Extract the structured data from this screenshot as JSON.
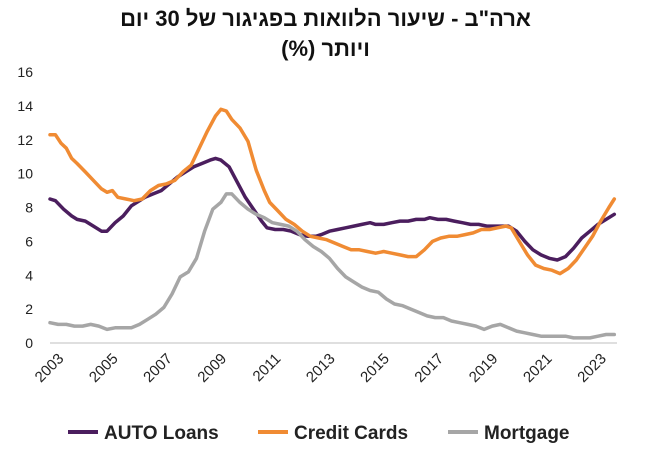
{
  "chart_data": {
    "type": "line",
    "title_line1": "ארה\"ב - שיעור הלוואות בפגיגור של 30 יום",
    "title_line2": "ויותר (%)",
    "ylim": [
      0,
      16
    ],
    "yticks": [
      0,
      2,
      4,
      6,
      8,
      10,
      12,
      14,
      16
    ],
    "xlim": [
      2003,
      2023.9
    ],
    "xticks": [
      "2003",
      "2005",
      "2007",
      "2009",
      "2011",
      "2013",
      "2015",
      "2017",
      "2019",
      "2021",
      "2023"
    ],
    "grid": false,
    "legend_position": "bottom",
    "series": [
      {
        "name": "AUTO Loans",
        "color": "#4b1e5e",
        "points": [
          [
            2003.0,
            8.5
          ],
          [
            2003.2,
            8.4
          ],
          [
            2003.5,
            7.9
          ],
          [
            2003.8,
            7.5
          ],
          [
            2004.0,
            7.3
          ],
          [
            2004.3,
            7.2
          ],
          [
            2004.6,
            6.9
          ],
          [
            2004.9,
            6.6
          ],
          [
            2005.1,
            6.6
          ],
          [
            2005.4,
            7.1
          ],
          [
            2005.7,
            7.5
          ],
          [
            2006.0,
            8.1
          ],
          [
            2006.2,
            8.3
          ],
          [
            2006.5,
            8.6
          ],
          [
            2006.8,
            8.8
          ],
          [
            2007.1,
            9.0
          ],
          [
            2007.4,
            9.4
          ],
          [
            2007.7,
            9.8
          ],
          [
            2008.0,
            10.1
          ],
          [
            2008.3,
            10.4
          ],
          [
            2008.6,
            10.6
          ],
          [
            2008.9,
            10.8
          ],
          [
            2009.1,
            10.9
          ],
          [
            2009.3,
            10.8
          ],
          [
            2009.6,
            10.4
          ],
          [
            2009.9,
            9.5
          ],
          [
            2010.2,
            8.6
          ],
          [
            2010.5,
            7.9
          ],
          [
            2010.8,
            7.2
          ],
          [
            2011.0,
            6.8
          ],
          [
            2011.3,
            6.7
          ],
          [
            2011.6,
            6.7
          ],
          [
            2011.9,
            6.6
          ],
          [
            2012.2,
            6.4
          ],
          [
            2012.5,
            6.3
          ],
          [
            2012.8,
            6.3
          ],
          [
            2013.0,
            6.4
          ],
          [
            2013.3,
            6.6
          ],
          [
            2013.6,
            6.7
          ],
          [
            2013.9,
            6.8
          ],
          [
            2014.2,
            6.9
          ],
          [
            2014.5,
            7.0
          ],
          [
            2014.8,
            7.1
          ],
          [
            2015.0,
            7.0
          ],
          [
            2015.3,
            7.0
          ],
          [
            2015.6,
            7.1
          ],
          [
            2015.9,
            7.2
          ],
          [
            2016.2,
            7.2
          ],
          [
            2016.5,
            7.3
          ],
          [
            2016.8,
            7.3
          ],
          [
            2017.0,
            7.4
          ],
          [
            2017.3,
            7.3
          ],
          [
            2017.6,
            7.3
          ],
          [
            2017.9,
            7.2
          ],
          [
            2018.2,
            7.1
          ],
          [
            2018.5,
            7.0
          ],
          [
            2018.8,
            7.0
          ],
          [
            2019.1,
            6.9
          ],
          [
            2019.4,
            6.9
          ],
          [
            2019.7,
            6.9
          ],
          [
            2019.9,
            6.9
          ],
          [
            2020.2,
            6.6
          ],
          [
            2020.5,
            6.0
          ],
          [
            2020.8,
            5.5
          ],
          [
            2021.1,
            5.2
          ],
          [
            2021.4,
            5.0
          ],
          [
            2021.7,
            4.9
          ],
          [
            2022.0,
            5.1
          ],
          [
            2022.3,
            5.6
          ],
          [
            2022.6,
            6.2
          ],
          [
            2022.9,
            6.6
          ],
          [
            2023.2,
            7.0
          ],
          [
            2023.5,
            7.3
          ],
          [
            2023.8,
            7.6
          ]
        ]
      },
      {
        "name": "Credit Cards",
        "color": "#f08b33",
        "points": [
          [
            2003.0,
            12.3
          ],
          [
            2003.2,
            12.3
          ],
          [
            2003.4,
            11.8
          ],
          [
            2003.6,
            11.5
          ],
          [
            2003.8,
            10.9
          ],
          [
            2004.0,
            10.6
          ],
          [
            2004.3,
            10.1
          ],
          [
            2004.6,
            9.6
          ],
          [
            2004.9,
            9.1
          ],
          [
            2005.1,
            8.9
          ],
          [
            2005.3,
            9.0
          ],
          [
            2005.5,
            8.6
          ],
          [
            2005.8,
            8.5
          ],
          [
            2006.1,
            8.4
          ],
          [
            2006.4,
            8.5
          ],
          [
            2006.7,
            9.0
          ],
          [
            2007.0,
            9.3
          ],
          [
            2007.3,
            9.4
          ],
          [
            2007.6,
            9.6
          ],
          [
            2007.9,
            10.1
          ],
          [
            2008.2,
            10.5
          ],
          [
            2008.5,
            11.5
          ],
          [
            2008.8,
            12.5
          ],
          [
            2009.1,
            13.4
          ],
          [
            2009.3,
            13.8
          ],
          [
            2009.5,
            13.7
          ],
          [
            2009.7,
            13.2
          ],
          [
            2010.0,
            12.7
          ],
          [
            2010.3,
            11.9
          ],
          [
            2010.6,
            10.2
          ],
          [
            2010.9,
            9.0
          ],
          [
            2011.1,
            8.3
          ],
          [
            2011.4,
            7.8
          ],
          [
            2011.7,
            7.3
          ],
          [
            2012.0,
            7.0
          ],
          [
            2012.3,
            6.6
          ],
          [
            2012.6,
            6.3
          ],
          [
            2012.9,
            6.2
          ],
          [
            2013.2,
            6.1
          ],
          [
            2013.5,
            5.9
          ],
          [
            2013.8,
            5.7
          ],
          [
            2014.1,
            5.5
          ],
          [
            2014.4,
            5.5
          ],
          [
            2014.7,
            5.4
          ],
          [
            2015.0,
            5.3
          ],
          [
            2015.3,
            5.4
          ],
          [
            2015.6,
            5.3
          ],
          [
            2015.9,
            5.2
          ],
          [
            2016.2,
            5.1
          ],
          [
            2016.5,
            5.1
          ],
          [
            2016.8,
            5.5
          ],
          [
            2017.1,
            6.0
          ],
          [
            2017.4,
            6.2
          ],
          [
            2017.7,
            6.3
          ],
          [
            2018.0,
            6.3
          ],
          [
            2018.3,
            6.4
          ],
          [
            2018.6,
            6.5
          ],
          [
            2018.9,
            6.7
          ],
          [
            2019.2,
            6.7
          ],
          [
            2019.5,
            6.8
          ],
          [
            2019.8,
            6.9
          ],
          [
            2020.0,
            6.8
          ],
          [
            2020.3,
            6.0
          ],
          [
            2020.6,
            5.2
          ],
          [
            2020.9,
            4.6
          ],
          [
            2021.2,
            4.4
          ],
          [
            2021.5,
            4.3
          ],
          [
            2021.8,
            4.1
          ],
          [
            2022.1,
            4.4
          ],
          [
            2022.4,
            4.9
          ],
          [
            2022.7,
            5.6
          ],
          [
            2023.0,
            6.3
          ],
          [
            2023.3,
            7.2
          ],
          [
            2023.6,
            8.0
          ],
          [
            2023.8,
            8.5
          ]
        ]
      },
      {
        "name": "Mortgage",
        "color": "#a6a6a6",
        "points": [
          [
            2003.0,
            1.2
          ],
          [
            2003.3,
            1.1
          ],
          [
            2003.6,
            1.1
          ],
          [
            2003.9,
            1.0
          ],
          [
            2004.2,
            1.0
          ],
          [
            2004.5,
            1.1
          ],
          [
            2004.8,
            1.0
          ],
          [
            2005.1,
            0.8
          ],
          [
            2005.4,
            0.9
          ],
          [
            2005.7,
            0.9
          ],
          [
            2006.0,
            0.9
          ],
          [
            2006.3,
            1.1
          ],
          [
            2006.6,
            1.4
          ],
          [
            2006.9,
            1.7
          ],
          [
            2007.2,
            2.1
          ],
          [
            2007.5,
            2.9
          ],
          [
            2007.8,
            3.9
          ],
          [
            2008.1,
            4.2
          ],
          [
            2008.4,
            5.0
          ],
          [
            2008.7,
            6.6
          ],
          [
            2009.0,
            7.9
          ],
          [
            2009.3,
            8.3
          ],
          [
            2009.5,
            8.8
          ],
          [
            2009.7,
            8.8
          ],
          [
            2010.0,
            8.3
          ],
          [
            2010.3,
            7.9
          ],
          [
            2010.6,
            7.6
          ],
          [
            2010.9,
            7.4
          ],
          [
            2011.2,
            7.1
          ],
          [
            2011.5,
            7.0
          ],
          [
            2011.8,
            6.9
          ],
          [
            2012.1,
            6.6
          ],
          [
            2012.4,
            6.1
          ],
          [
            2012.7,
            5.7
          ],
          [
            2013.0,
            5.4
          ],
          [
            2013.3,
            5.0
          ],
          [
            2013.6,
            4.4
          ],
          [
            2013.9,
            3.9
          ],
          [
            2014.2,
            3.6
          ],
          [
            2014.5,
            3.3
          ],
          [
            2014.8,
            3.1
          ],
          [
            2015.1,
            3.0
          ],
          [
            2015.4,
            2.6
          ],
          [
            2015.7,
            2.3
          ],
          [
            2016.0,
            2.2
          ],
          [
            2016.3,
            2.0
          ],
          [
            2016.6,
            1.8
          ],
          [
            2016.9,
            1.6
          ],
          [
            2017.2,
            1.5
          ],
          [
            2017.5,
            1.5
          ],
          [
            2017.8,
            1.3
          ],
          [
            2018.1,
            1.2
          ],
          [
            2018.4,
            1.1
          ],
          [
            2018.7,
            1.0
          ],
          [
            2019.0,
            0.8
          ],
          [
            2019.3,
            1.0
          ],
          [
            2019.6,
            1.1
          ],
          [
            2019.9,
            0.9
          ],
          [
            2020.2,
            0.7
          ],
          [
            2020.5,
            0.6
          ],
          [
            2020.8,
            0.5
          ],
          [
            2021.1,
            0.4
          ],
          [
            2021.4,
            0.4
          ],
          [
            2021.7,
            0.4
          ],
          [
            2022.0,
            0.4
          ],
          [
            2022.3,
            0.3
          ],
          [
            2022.6,
            0.3
          ],
          [
            2022.9,
            0.3
          ],
          [
            2023.2,
            0.4
          ],
          [
            2023.5,
            0.5
          ],
          [
            2023.8,
            0.5
          ]
        ]
      }
    ]
  }
}
